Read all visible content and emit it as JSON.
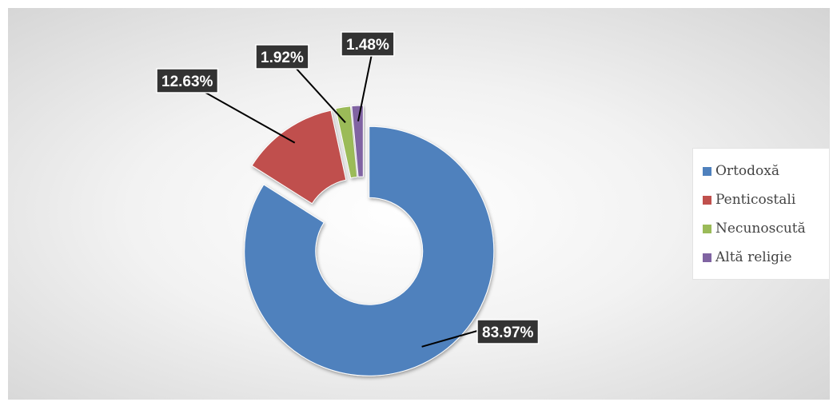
{
  "chart_data": {
    "type": "pie",
    "variant": "donut",
    "exploded": true,
    "start_angle_deg": 0,
    "direction": "clockwise",
    "legend_position": "right",
    "title": "",
    "categories": [
      "Ortodoxă",
      "Penticostali",
      "Necunoscută",
      "Altă religie"
    ],
    "values": [
      83.97,
      12.63,
      1.92,
      1.48
    ],
    "value_labels": [
      "83.97%",
      "12.63%",
      "1.92%",
      "1.48%"
    ],
    "colors": [
      "#4f81bd",
      "#c0504d",
      "#9bbb59",
      "#8064a2"
    ]
  }
}
